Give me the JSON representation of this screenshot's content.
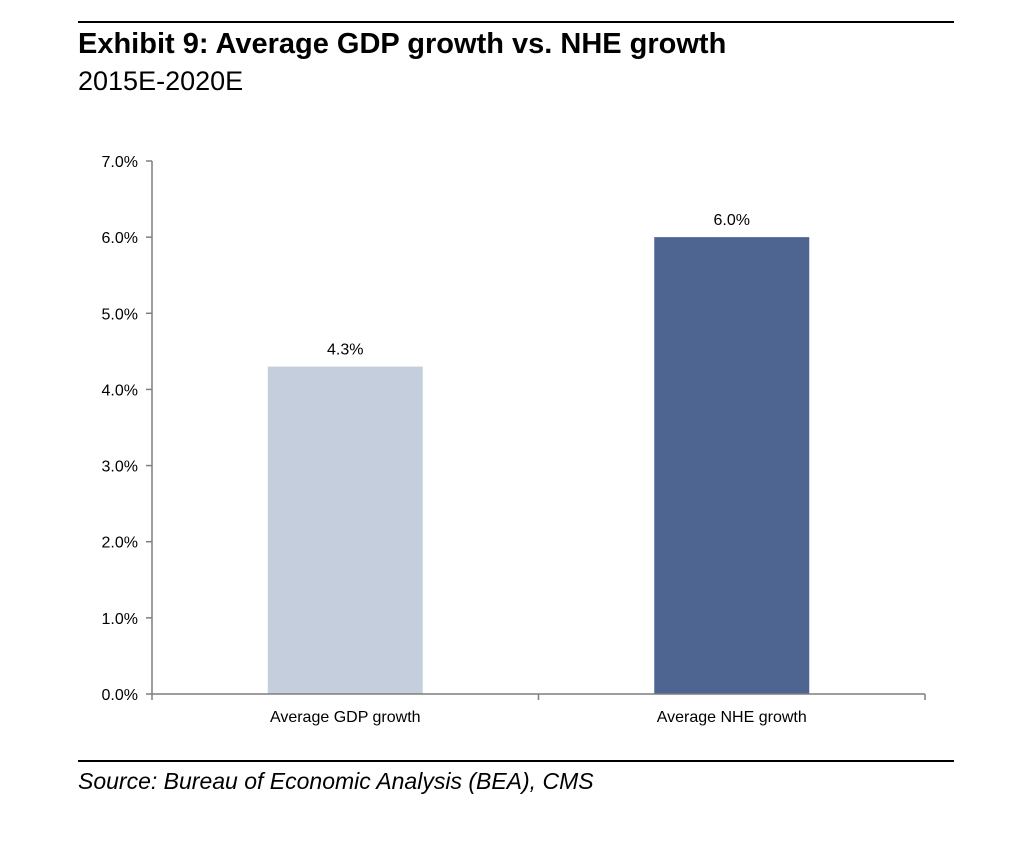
{
  "header": {
    "title": "Exhibit 9: Average GDP growth vs. NHE growth",
    "subtitle": "2015E-2020E"
  },
  "footer": {
    "source": "Source: Bureau of Economic Analysis (BEA), CMS"
  },
  "colors": {
    "gdp_bar": "#c5cedd",
    "nhe_bar": "#4e6591",
    "axis": "#7f7f7f"
  },
  "chart_data": {
    "type": "bar",
    "categories": [
      "Average GDP growth",
      "Average NHE growth"
    ],
    "values": [
      4.3,
      6.0
    ],
    "data_labels": [
      "4.3%",
      "6.0%"
    ],
    "y_tick_values": [
      0,
      1,
      2,
      3,
      4,
      5,
      6,
      7
    ],
    "y_tick_labels": [
      "0.0%",
      "1.0%",
      "2.0%",
      "3.0%",
      "4.0%",
      "5.0%",
      "6.0%",
      "7.0%"
    ],
    "ylim": [
      0,
      7
    ],
    "xlabel": "",
    "ylabel": "",
    "grid": false,
    "legend": "none"
  }
}
